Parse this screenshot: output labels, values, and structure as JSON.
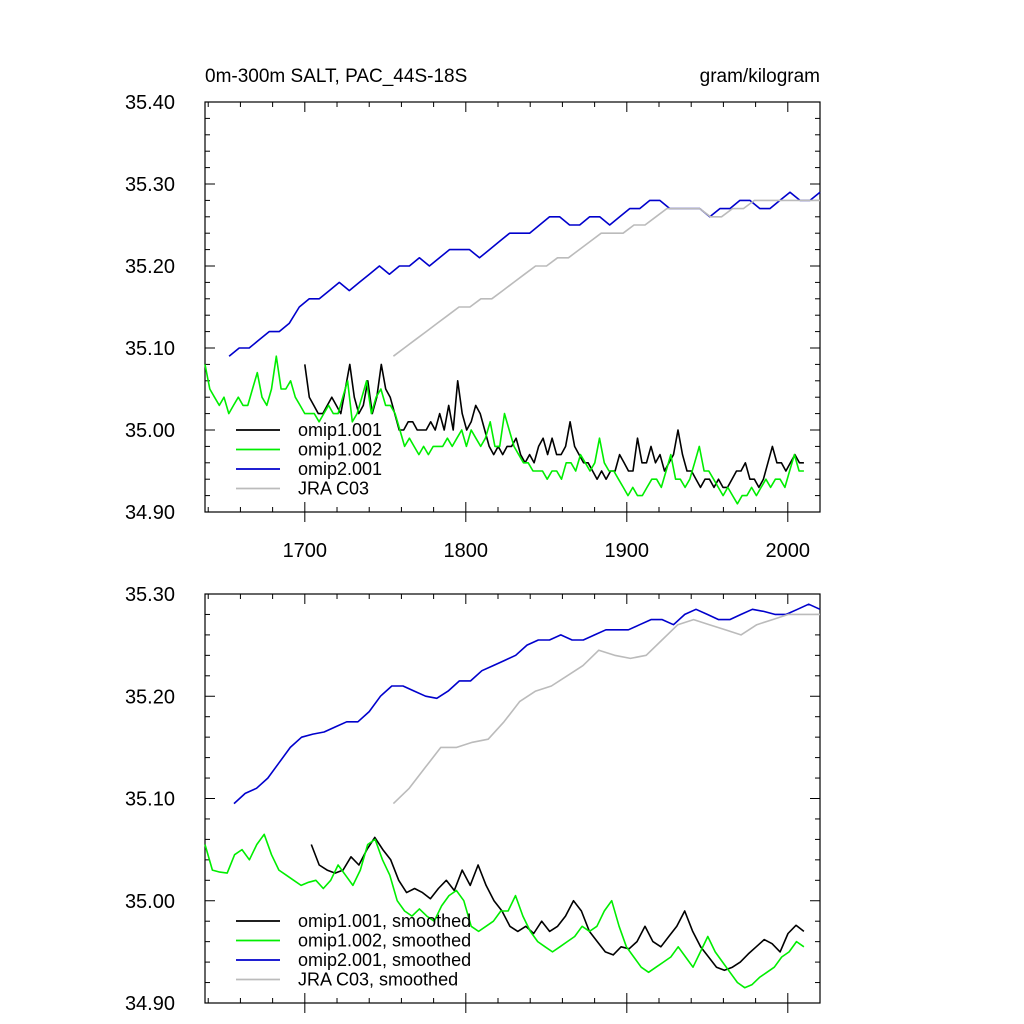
{
  "chart_data": [
    {
      "type": "line",
      "title_left": "0m-300m SALT, PAC_44S-18S",
      "title_right": "gram/kilogram",
      "xlim": [
        1638,
        2020
      ],
      "ylim": [
        34.9,
        35.4
      ],
      "x_ticks": [
        1700,
        1800,
        1900,
        2000
      ],
      "x_tick_labels": [
        "1700",
        "1800",
        "1900",
        "2000"
      ],
      "y_ticks": [
        34.9,
        35.0,
        35.1,
        35.2,
        35.3,
        35.4
      ],
      "y_tick_labels": [
        "34.90",
        "35.00",
        "35.10",
        "35.20",
        "35.30",
        "35.40"
      ],
      "legend_position": "bottom-left",
      "series": [
        {
          "name": "omip1.001",
          "color": "#000000",
          "x_start": 1700,
          "x_end": 2010,
          "values": [
            35.08,
            35.04,
            35.03,
            35.02,
            35.02,
            35.03,
            35.04,
            35.03,
            35.02,
            35.05,
            35.08,
            35.04,
            35.02,
            35.03,
            35.06,
            35.02,
            35.04,
            35.08,
            35.05,
            35.04,
            35.02,
            35.0,
            35.0,
            35.01,
            35.01,
            35.0,
            35.0,
            35.0,
            35.01,
            35.0,
            35.02,
            35.0,
            35.03,
            35.0,
            35.06,
            35.02,
            35.0,
            35.01,
            35.03,
            35.02,
            35.0,
            34.98,
            34.97,
            34.98,
            34.97,
            34.98,
            34.98,
            34.99,
            34.97,
            34.96,
            34.97,
            34.96,
            34.98,
            34.99,
            34.97,
            34.99,
            34.97,
            34.97,
            34.98,
            35.01,
            34.98,
            34.97,
            34.96,
            34.96,
            34.95,
            34.94,
            34.95,
            34.94,
            34.95,
            34.95,
            34.97,
            34.96,
            34.95,
            34.95,
            34.99,
            34.96,
            34.96,
            34.98,
            34.96,
            34.97,
            34.95,
            34.96,
            34.97,
            35.0,
            34.97,
            34.95,
            34.95,
            34.94,
            34.93,
            34.94,
            34.94,
            34.93,
            34.94,
            34.93,
            34.93,
            34.94,
            34.95,
            34.95,
            34.96,
            34.94,
            34.94,
            34.93,
            34.94,
            34.96,
            34.98,
            34.96,
            34.96,
            34.95,
            34.96,
            34.97,
            34.96,
            34.96
          ]
        },
        {
          "name": "omip1.002",
          "color": "#00ee00",
          "x_start": 1638,
          "x_end": 2010,
          "values": [
            35.08,
            35.05,
            35.04,
            35.03,
            35.04,
            35.02,
            35.03,
            35.04,
            35.03,
            35.03,
            35.05,
            35.07,
            35.04,
            35.03,
            35.05,
            35.09,
            35.05,
            35.05,
            35.06,
            35.04,
            35.03,
            35.02,
            35.02,
            35.02,
            35.01,
            35.02,
            35.03,
            35.02,
            35.02,
            35.04,
            35.06,
            35.01,
            35.02,
            35.04,
            35.06,
            35.02,
            35.04,
            35.05,
            35.03,
            35.03,
            35.02,
            35.0,
            34.98,
            34.99,
            34.98,
            34.97,
            34.98,
            34.97,
            34.98,
            34.98,
            34.98,
            34.99,
            34.98,
            34.99,
            35.0,
            34.98,
            35.0,
            34.99,
            34.98,
            34.99,
            35.01,
            34.98,
            34.98,
            35.02,
            35.0,
            34.98,
            34.97,
            34.96,
            34.96,
            34.95,
            34.95,
            34.95,
            34.94,
            34.95,
            34.95,
            34.94,
            34.96,
            34.96,
            34.95,
            34.97,
            34.96,
            34.95,
            34.96,
            34.99,
            34.96,
            34.95,
            34.95,
            34.94,
            34.93,
            34.92,
            34.93,
            34.92,
            34.92,
            34.93,
            34.94,
            34.94,
            34.93,
            34.95,
            34.97,
            34.94,
            34.94,
            34.93,
            34.94,
            34.96,
            34.98,
            34.95,
            34.95,
            34.94,
            34.93,
            34.92,
            34.93,
            34.92,
            34.91,
            34.92,
            34.92,
            34.93,
            34.92,
            34.93,
            34.94,
            34.93,
            34.94,
            34.94,
            34.93,
            34.95,
            34.97,
            34.95,
            34.95
          ]
        },
        {
          "name": "omip2.001",
          "color": "#0000cc",
          "x_start": 1653,
          "x_end": 2020,
          "values": [
            35.09,
            35.1,
            35.1,
            35.11,
            35.12,
            35.12,
            35.13,
            35.15,
            35.16,
            35.16,
            35.17,
            35.18,
            35.17,
            35.18,
            35.19,
            35.2,
            35.19,
            35.2,
            35.2,
            35.21,
            35.2,
            35.21,
            35.22,
            35.22,
            35.22,
            35.21,
            35.22,
            35.23,
            35.24,
            35.24,
            35.24,
            35.25,
            35.26,
            35.26,
            35.25,
            35.25,
            35.26,
            35.26,
            35.25,
            35.26,
            35.27,
            35.27,
            35.28,
            35.28,
            35.27,
            35.27,
            35.27,
            35.27,
            35.26,
            35.27,
            35.27,
            35.28,
            35.28,
            35.27,
            35.27,
            35.28,
            35.29,
            35.28,
            35.28,
            35.29
          ]
        },
        {
          "name": "JRA C03",
          "color": "#bbbbbb",
          "x_start": 1755,
          "x_end": 2020,
          "values": [
            35.09,
            35.1,
            35.11,
            35.12,
            35.13,
            35.14,
            35.15,
            35.15,
            35.16,
            35.16,
            35.17,
            35.18,
            35.19,
            35.2,
            35.2,
            35.21,
            35.21,
            35.22,
            35.23,
            35.24,
            35.24,
            35.24,
            35.25,
            35.25,
            35.26,
            35.27,
            35.27,
            35.27,
            35.27,
            35.26,
            35.26,
            35.27,
            35.27,
            35.28,
            35.28,
            35.28,
            35.28,
            35.28,
            35.28,
            35.28
          ]
        }
      ]
    },
    {
      "type": "line",
      "xlim": [
        1638,
        2020
      ],
      "ylim": [
        34.9,
        35.3
      ],
      "x_ticks": [
        1700,
        1800,
        1900,
        2000
      ],
      "y_ticks": [
        34.9,
        35.0,
        35.1,
        35.2,
        35.3
      ],
      "y_tick_labels": [
        "34.90",
        "35.00",
        "35.10",
        "35.20",
        "35.30"
      ],
      "legend_position": "bottom-left",
      "series": [
        {
          "name": "omip1.001, smoothed",
          "color": "#000000",
          "x_start": 1704,
          "x_end": 2010,
          "values": [
            35.055,
            35.035,
            35.03,
            35.027,
            35.03,
            35.043,
            35.035,
            35.05,
            35.062,
            35.05,
            35.04,
            35.02,
            35.008,
            35.012,
            35.008,
            35.002,
            35.012,
            35.02,
            35.01,
            35.03,
            35.015,
            35.035,
            35.015,
            35.0,
            34.99,
            34.975,
            34.97,
            34.975,
            34.968,
            34.98,
            34.97,
            34.975,
            34.985,
            35.0,
            34.99,
            34.97,
            34.96,
            34.95,
            34.947,
            34.955,
            34.953,
            34.96,
            34.975,
            34.96,
            34.955,
            34.965,
            34.975,
            34.99,
            34.97,
            34.955,
            34.945,
            34.935,
            34.932,
            34.935,
            34.94,
            34.948,
            34.955,
            34.962,
            34.958,
            34.95,
            34.968,
            34.976,
            34.97
          ]
        },
        {
          "name": "omip1.002, smoothed",
          "color": "#00ee00",
          "x_start": 1638,
          "x_end": 2010,
          "values": [
            35.055,
            35.03,
            35.028,
            35.027,
            35.045,
            35.05,
            35.04,
            35.055,
            35.065,
            35.045,
            35.03,
            35.025,
            35.02,
            35.015,
            35.018,
            35.02,
            35.012,
            35.02,
            35.035,
            35.025,
            35.015,
            35.03,
            35.055,
            35.06,
            35.04,
            35.025,
            35.0,
            34.99,
            34.985,
            34.992,
            34.985,
            34.98,
            34.995,
            35.005,
            35.01,
            35.0,
            34.975,
            34.97,
            34.975,
            34.98,
            34.99,
            34.99,
            35.005,
            34.985,
            34.97,
            34.96,
            34.955,
            34.95,
            34.955,
            34.96,
            34.965,
            34.975,
            34.97,
            34.975,
            34.99,
            35.0,
            34.975,
            34.955,
            34.945,
            34.935,
            34.93,
            34.935,
            34.94,
            34.945,
            34.955,
            34.945,
            34.935,
            34.95,
            34.965,
            34.95,
            34.94,
            34.93,
            34.92,
            34.915,
            34.918,
            34.925,
            34.93,
            34.935,
            34.945,
            34.95,
            34.96,
            34.955
          ]
        },
        {
          "name": "omip2.001, smoothed",
          "color": "#0000cc",
          "x_start": 1656,
          "x_end": 2020,
          "values": [
            35.095,
            35.105,
            35.11,
            35.12,
            35.135,
            35.15,
            35.16,
            35.163,
            35.165,
            35.17,
            35.175,
            35.175,
            35.185,
            35.2,
            35.21,
            35.21,
            35.205,
            35.2,
            35.198,
            35.205,
            35.215,
            35.215,
            35.225,
            35.23,
            35.235,
            35.24,
            35.25,
            35.255,
            35.255,
            35.26,
            35.255,
            35.255,
            35.26,
            35.265,
            35.265,
            35.265,
            35.27,
            35.275,
            35.275,
            35.27,
            35.28,
            35.285,
            35.28,
            35.275,
            35.275,
            35.28,
            35.285,
            35.283,
            35.28,
            35.28,
            35.285,
            35.29,
            35.285
          ]
        },
        {
          "name": "JRA C03, smoothed",
          "color": "#bbbbbb",
          "x_start": 1755,
          "x_end": 2020,
          "values": [
            35.095,
            35.11,
            35.13,
            35.15,
            35.15,
            35.155,
            35.158,
            35.175,
            35.195,
            35.205,
            35.21,
            35.22,
            35.23,
            35.245,
            35.24,
            35.237,
            35.24,
            35.255,
            35.27,
            35.275,
            35.27,
            35.265,
            35.26,
            35.27,
            35.275,
            35.28,
            35.28,
            35.28
          ]
        }
      ]
    }
  ]
}
